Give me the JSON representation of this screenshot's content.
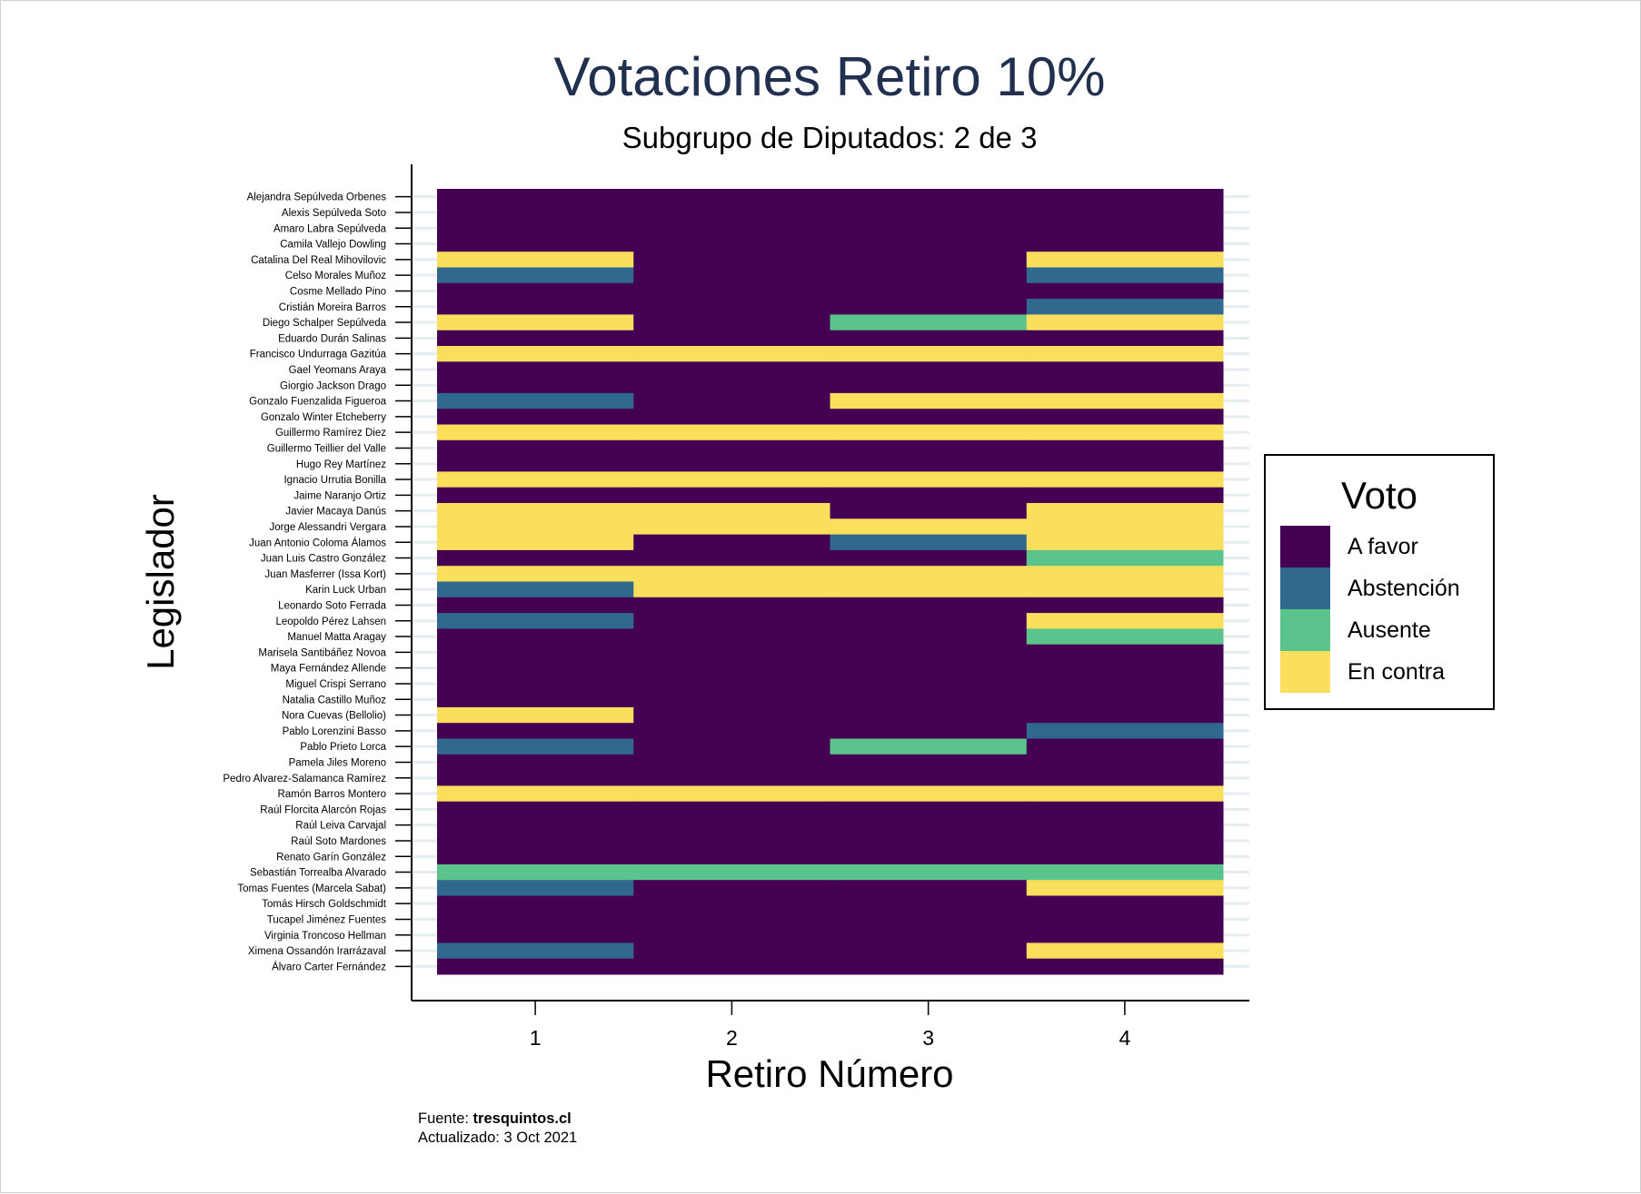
{
  "chart_data": {
    "type": "heatmap",
    "title": "Votaciones Retiro 10%",
    "subtitle": "Subgrupo de Diputados: 2 de 3",
    "xlabel": "Retiro Número",
    "ylabel": "Legislador",
    "x": [
      1,
      2,
      3,
      4
    ],
    "legend": {
      "title": "Voto",
      "placement": "right",
      "entries": [
        {
          "key": "F",
          "label": "A favor",
          "color": "#440154"
        },
        {
          "key": "B",
          "label": "Abstención",
          "color": "#31688e"
        },
        {
          "key": "U",
          "label": "Ausente",
          "color": "#5bc48c"
        },
        {
          "key": "C",
          "label": "En contra",
          "color": "#f9df5b"
        }
      ]
    },
    "legislators": [
      "Alejandra Sepúlveda Orbenes",
      "Alexis Sepúlveda Soto",
      "Amaro Labra Sepúlveda",
      "Camila Vallejo Dowling",
      "Catalina Del Real Mihovilovic",
      "Celso Morales Muñoz",
      "Cosme Mellado Pino",
      "Cristián Moreira Barros",
      "Diego Schalper Sepúlveda",
      "Eduardo Durán Salinas",
      "Francisco Undurraga Gazitúa",
      "Gael Yeomans Araya",
      "Giorgio Jackson Drago",
      "Gonzalo Fuenzalida Figueroa",
      "Gonzalo Winter Etcheberry",
      "Guillermo Ramírez Diez",
      "Guillermo Teillier del Valle",
      "Hugo Rey Martínez",
      "Ignacio Urrutia Bonilla",
      "Jaime Naranjo Ortiz",
      "Javier Macaya Danús",
      "Jorge Alessandri Vergara",
      "Juan Antonio Coloma Álamos",
      "Juan Luis Castro González",
      "Juan Masferrer (Issa Kort)",
      "Karin Luck Urban",
      "Leonardo Soto Ferrada",
      "Leopoldo Pérez Lahsen",
      "Manuel Matta Aragay",
      "Marisela Santibáñez Novoa",
      "Maya Fernández Allende",
      "Miguel Crispi Serrano",
      "Natalia Castillo Muñoz",
      "Nora Cuevas (Bellolio)",
      "Pablo Lorenzini Basso",
      "Pablo Prieto Lorca",
      "Pamela Jiles Moreno",
      "Pedro Alvarez-Salamanca Ramírez",
      "Ramón Barros Montero",
      "Raúl Florcita Alarcón Rojas",
      "Raúl Leiva Carvajal",
      "Raúl Soto Mardones",
      "Renato Garín González",
      "Sebastián Torrealba Alvarado",
      "Tomas Fuentes (Marcela Sabat)",
      "Tomás Hirsch Goldschmidt",
      "Tucapel Jiménez Fuentes",
      "Virginia Troncoso Hellman",
      "Ximena Ossandón Irarrázaval",
      "Álvaro Carter Fernández"
    ],
    "votes": [
      [
        "F",
        "F",
        "F",
        "F"
      ],
      [
        "F",
        "F",
        "F",
        "F"
      ],
      [
        "F",
        "F",
        "F",
        "F"
      ],
      [
        "F",
        "F",
        "F",
        "F"
      ],
      [
        "C",
        "F",
        "F",
        "C"
      ],
      [
        "B",
        "F",
        "F",
        "B"
      ],
      [
        "F",
        "F",
        "F",
        "F"
      ],
      [
        "F",
        "F",
        "F",
        "B"
      ],
      [
        "C",
        "F",
        "U",
        "C"
      ],
      [
        "F",
        "F",
        "F",
        "F"
      ],
      [
        "C",
        "C",
        "C",
        "C"
      ],
      [
        "F",
        "F",
        "F",
        "F"
      ],
      [
        "F",
        "F",
        "F",
        "F"
      ],
      [
        "B",
        "F",
        "C",
        "C"
      ],
      [
        "F",
        "F",
        "F",
        "F"
      ],
      [
        "C",
        "C",
        "C",
        "C"
      ],
      [
        "F",
        "F",
        "F",
        "F"
      ],
      [
        "F",
        "F",
        "F",
        "F"
      ],
      [
        "C",
        "C",
        "C",
        "C"
      ],
      [
        "F",
        "F",
        "F",
        "F"
      ],
      [
        "C",
        "C",
        "F",
        "C"
      ],
      [
        "C",
        "C",
        "C",
        "C"
      ],
      [
        "C",
        "F",
        "B",
        "C"
      ],
      [
        "F",
        "F",
        "F",
        "U"
      ],
      [
        "C",
        "C",
        "C",
        "C"
      ],
      [
        "B",
        "C",
        "C",
        "C"
      ],
      [
        "F",
        "F",
        "F",
        "F"
      ],
      [
        "B",
        "F",
        "F",
        "C"
      ],
      [
        "F",
        "F",
        "F",
        "U"
      ],
      [
        "F",
        "F",
        "F",
        "F"
      ],
      [
        "F",
        "F",
        "F",
        "F"
      ],
      [
        "F",
        "F",
        "F",
        "F"
      ],
      [
        "F",
        "F",
        "F",
        "F"
      ],
      [
        "C",
        "F",
        "F",
        "F"
      ],
      [
        "F",
        "F",
        "F",
        "B"
      ],
      [
        "B",
        "F",
        "U",
        "F"
      ],
      [
        "F",
        "F",
        "F",
        "F"
      ],
      [
        "F",
        "F",
        "F",
        "F"
      ],
      [
        "C",
        "C",
        "C",
        "C"
      ],
      [
        "F",
        "F",
        "F",
        "F"
      ],
      [
        "F",
        "F",
        "F",
        "F"
      ],
      [
        "F",
        "F",
        "F",
        "F"
      ],
      [
        "F",
        "F",
        "F",
        "F"
      ],
      [
        "U",
        "U",
        "U",
        "U"
      ],
      [
        "B",
        "F",
        "F",
        "C"
      ],
      [
        "F",
        "F",
        "F",
        "F"
      ],
      [
        "F",
        "F",
        "F",
        "F"
      ],
      [
        "F",
        "F",
        "F",
        "F"
      ],
      [
        "B",
        "F",
        "F",
        "C"
      ],
      [
        "F",
        "F",
        "F",
        "F"
      ]
    ],
    "grid": true
  },
  "source": {
    "prefix": "Fuente: ",
    "name": "tresquintos.cl",
    "updated": "Actualizado: 3 Oct 2021"
  }
}
